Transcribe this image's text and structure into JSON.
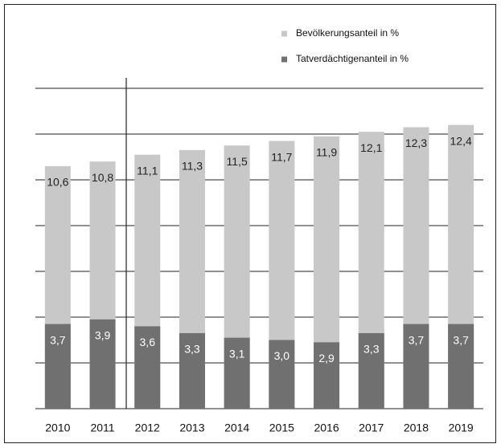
{
  "chart_data": {
    "type": "bar",
    "overlay": true,
    "categories": [
      "2010",
      "2011",
      "2012",
      "2013",
      "2014",
      "2015",
      "2016",
      "2017",
      "2018",
      "2019"
    ],
    "series": [
      {
        "name": "Bevölkerungsanteil  in  %",
        "color": "#c8c8c8",
        "values": [
          10.6,
          10.8,
          11.1,
          11.3,
          11.5,
          11.7,
          11.9,
          12.1,
          12.3,
          12.4
        ],
        "value_labels": [
          "10,6",
          "10,8",
          "11,1",
          "11,3",
          "11,5",
          "11,7",
          "11,9",
          "12,1",
          "12,3",
          "12,4"
        ]
      },
      {
        "name": "Tatverdächtigenanteil  in  %",
        "color": "#707070",
        "values": [
          3.7,
          3.9,
          3.6,
          3.3,
          3.1,
          3.0,
          2.9,
          3.3,
          3.7,
          3.7
        ],
        "value_labels": [
          "3,7",
          "3,9",
          "3,6",
          "3,3",
          "3,1",
          "3,0",
          "2,9",
          "3,3",
          "3,7",
          "3,7"
        ]
      }
    ],
    "ylim": [
      0,
      14
    ],
    "yticks": [
      0,
      2,
      4,
      6,
      8,
      10,
      12,
      14
    ],
    "grid": true
  }
}
